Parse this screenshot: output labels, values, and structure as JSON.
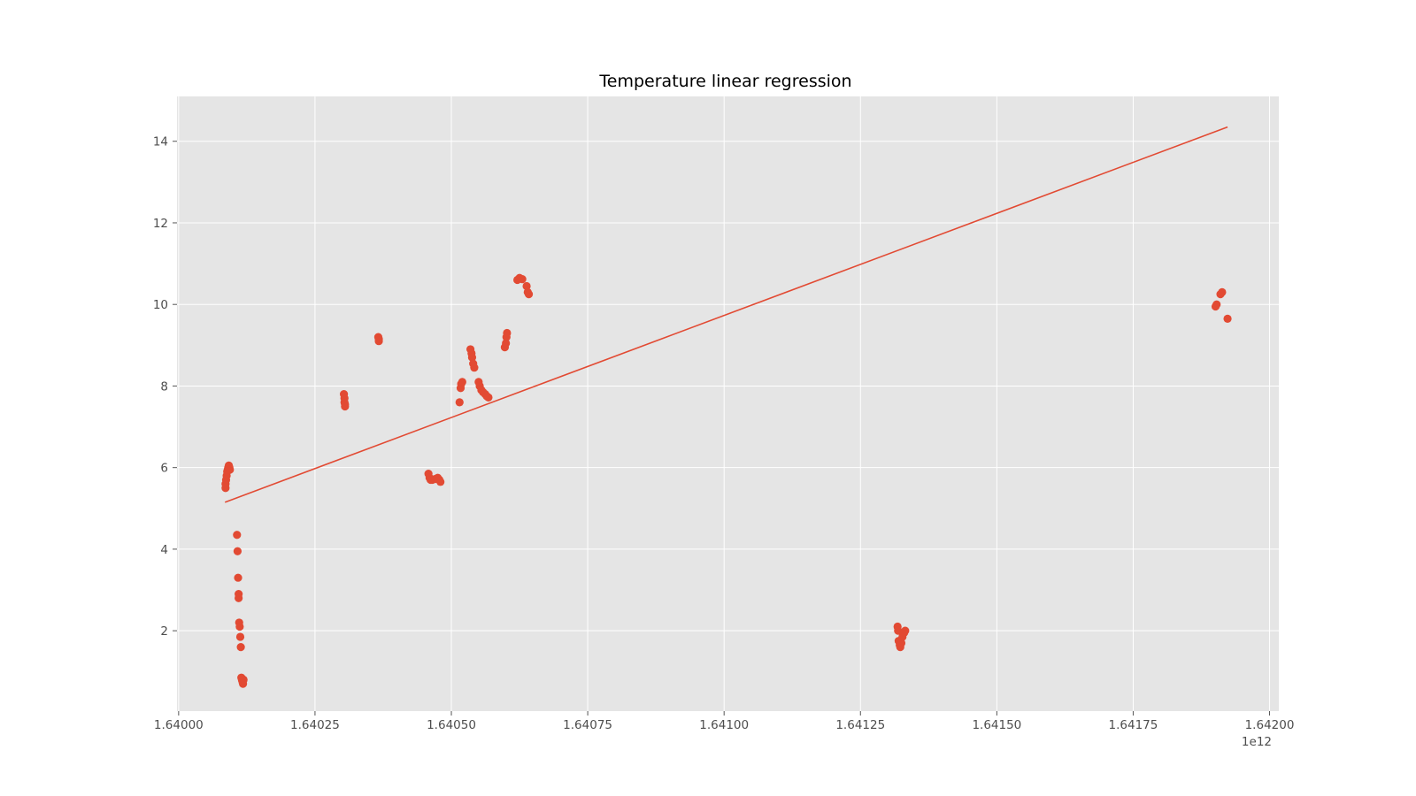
{
  "chart_data": {
    "type": "scatter",
    "title": "Temperature linear regression",
    "xlabel": "",
    "ylabel": "",
    "x_offset_label": "1e12",
    "x_scale": 1000000000000.0,
    "xlim": [
      1.639997,
      1.642017
    ],
    "ylim": [
      0.03,
      15.1
    ],
    "xticks": [
      1.64,
      1.64025,
      1.6405,
      1.64075,
      1.641,
      1.64125,
      1.6415,
      1.64175,
      1.642
    ],
    "xtick_labels": [
      "1.64000",
      "1.64025",
      "1.64050",
      "1.64075",
      "1.64100",
      "1.64125",
      "1.64150",
      "1.64175",
      "1.64200"
    ],
    "yticks": [
      2,
      4,
      6,
      8,
      10,
      12,
      14
    ],
    "ytick_labels": [
      "2",
      "4",
      "6",
      "8",
      "10",
      "12",
      "14"
    ],
    "grid": true,
    "colors": {
      "series": "#E24A33",
      "background": "#E5E5E5",
      "grid": "#FFFFFF"
    },
    "series": [
      {
        "type": "scatter",
        "x": [
          1.640086,
          1.640086,
          1.640087,
          1.640088,
          1.640089,
          1.64009,
          1.640091,
          1.640092,
          1.640093,
          1.640094,
          1.640107,
          1.640108,
          1.640109,
          1.64011,
          1.64011,
          1.640111,
          1.640112,
          1.640113,
          1.640114,
          1.640115,
          1.640116,
          1.640117,
          1.640118,
          1.640119,
          1.640303,
          1.640304,
          1.640304,
          1.640305,
          1.640305,
          1.640366,
          1.640367,
          1.640367,
          1.640458,
          1.64046,
          1.640462,
          1.640465,
          1.64047,
          1.640475,
          1.640478,
          1.64048,
          1.640515,
          1.640517,
          1.640518,
          1.64052,
          1.640535,
          1.640537,
          1.640538,
          1.64054,
          1.640542,
          1.64055,
          1.640552,
          1.640555,
          1.640558,
          1.640562,
          1.640565,
          1.640568,
          1.640598,
          1.6406,
          1.640601,
          1.640602,
          1.640621,
          1.640625,
          1.64063,
          1.640638,
          1.64064,
          1.640642,
          1.641318,
          1.641319,
          1.64132,
          1.641322,
          1.641323,
          1.641325,
          1.641327,
          1.64133,
          1.641332,
          1.641901,
          1.641903,
          1.64191,
          1.641913,
          1.641923
        ],
        "y": [
          5.5,
          5.6,
          5.7,
          5.8,
          5.9,
          5.95,
          6.0,
          6.05,
          6.0,
          5.95,
          4.35,
          3.95,
          3.3,
          2.9,
          2.8,
          2.2,
          2.1,
          1.85,
          1.6,
          0.85,
          0.8,
          0.75,
          0.7,
          0.8,
          7.8,
          7.7,
          7.6,
          7.5,
          7.55,
          9.2,
          9.1,
          9.15,
          5.85,
          5.75,
          5.7,
          5.7,
          5.72,
          5.75,
          5.7,
          5.65,
          7.6,
          7.95,
          8.05,
          8.1,
          8.9,
          8.8,
          8.7,
          8.55,
          8.45,
          8.1,
          8.0,
          7.9,
          7.85,
          7.8,
          7.75,
          7.72,
          8.95,
          9.05,
          9.2,
          9.3,
          10.6,
          10.65,
          10.62,
          10.45,
          10.3,
          10.25,
          2.1,
          2.0,
          1.75,
          1.65,
          1.6,
          1.7,
          1.85,
          1.95,
          2.0,
          9.95,
          10.0,
          10.25,
          10.3,
          9.65
        ]
      },
      {
        "type": "line",
        "x": [
          1.640085,
          1.641923
        ],
        "y": [
          5.15,
          14.35
        ]
      }
    ]
  }
}
